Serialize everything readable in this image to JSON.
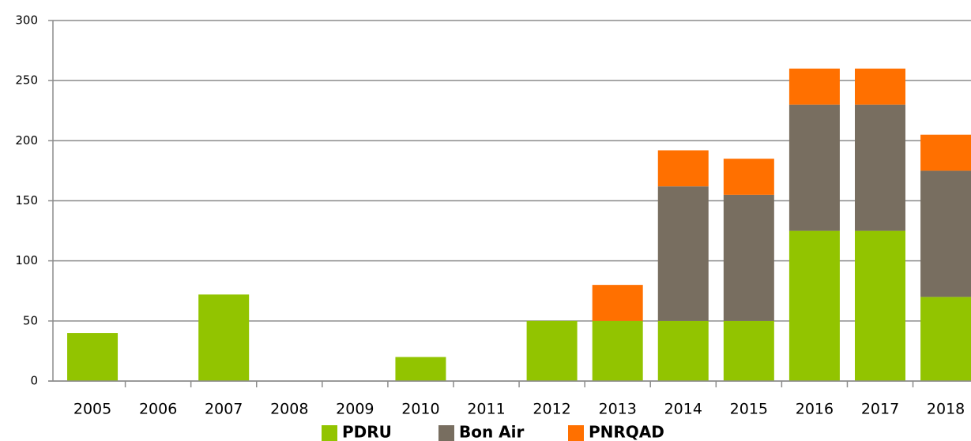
{
  "chart_data": {
    "type": "stacked_bar",
    "categories": [
      "2005",
      "2006",
      "2007",
      "2008",
      "2009",
      "2010",
      "2011",
      "2012",
      "2013",
      "2014",
      "2015",
      "2016",
      "2017",
      "2018"
    ],
    "series": [
      {
        "name": "PDRU",
        "color": "#92c400",
        "values": [
          40,
          0,
          72,
          0,
          0,
          20,
          0,
          50,
          50,
          50,
          50,
          125,
          125,
          70
        ]
      },
      {
        "name": "Bon Air",
        "color": "#786e60",
        "values": [
          0,
          0,
          0,
          0,
          0,
          0,
          0,
          0,
          0,
          112,
          105,
          105,
          105,
          105
        ]
      },
      {
        "name": "PNRQAD",
        "color": "#ff7000",
        "values": [
          0,
          0,
          0,
          0,
          0,
          0,
          0,
          0,
          30,
          30,
          30,
          30,
          30,
          30
        ]
      }
    ],
    "ylim": [
      0,
      300
    ],
    "yticks": [
      0,
      50,
      100,
      150,
      200,
      250,
      300
    ],
    "grid": true,
    "legend": "bottom"
  }
}
